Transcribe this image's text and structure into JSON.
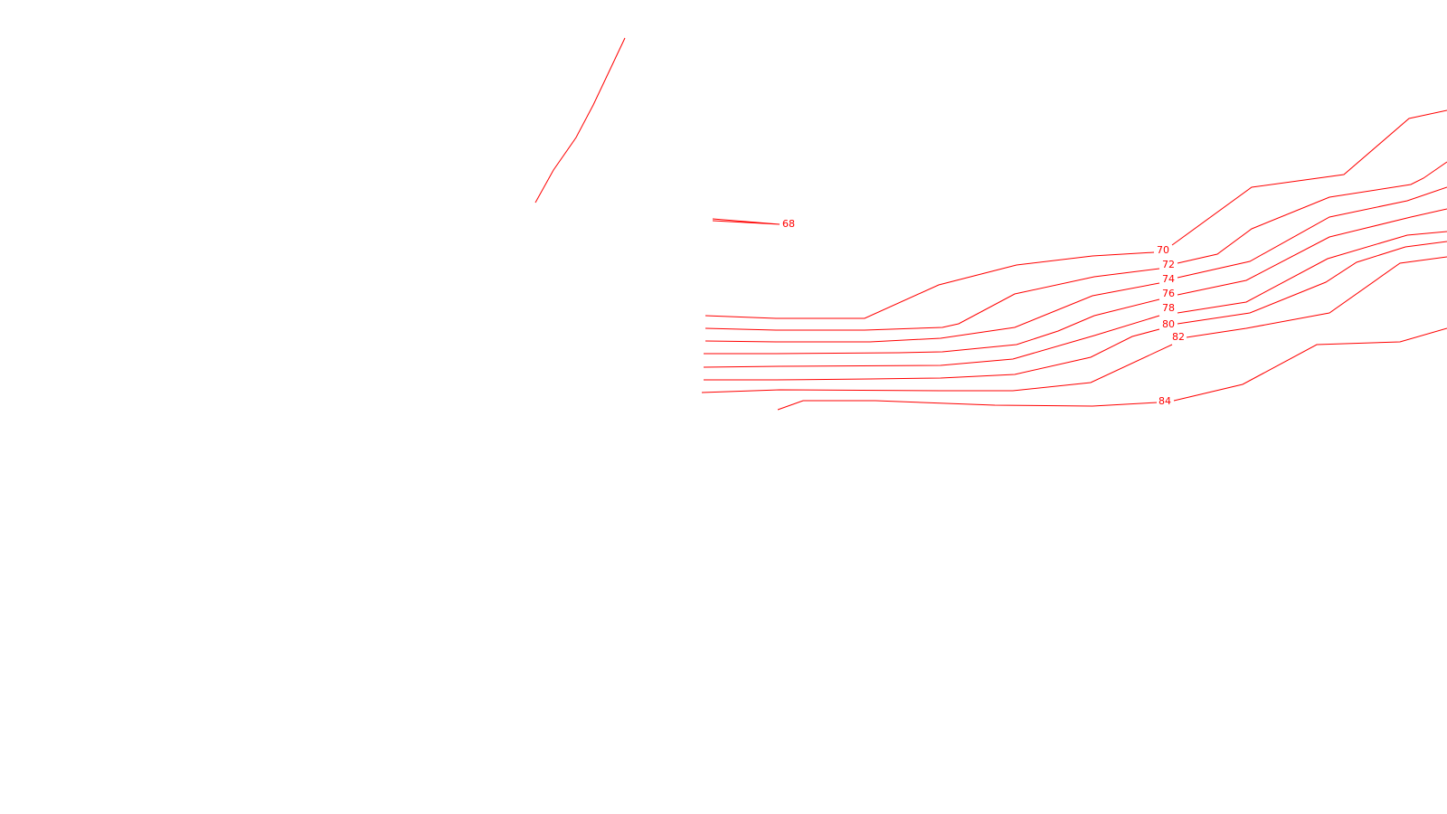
{
  "drawing": {
    "background_color": "#ffffff",
    "line_color": "#ff0000",
    "contours": [
      {
        "id": "68",
        "label": "68"
      },
      {
        "id": "70",
        "label": "70"
      },
      {
        "id": "72",
        "label": "72"
      },
      {
        "id": "74",
        "label": "74"
      },
      {
        "id": "76",
        "label": "76"
      },
      {
        "id": "78",
        "label": "78"
      },
      {
        "id": "80",
        "label": "80"
      },
      {
        "id": "82",
        "label": "82"
      },
      {
        "id": "84",
        "label": "84"
      }
    ]
  }
}
